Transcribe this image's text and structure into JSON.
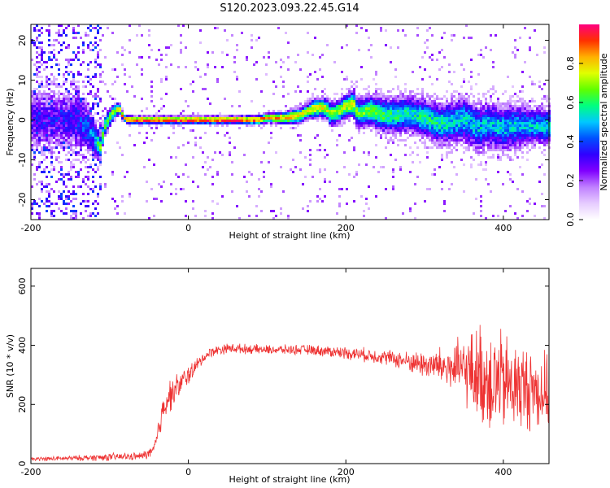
{
  "title": "S120.2023.093.22.45.G14",
  "chart_data": [
    {
      "type": "heatmap",
      "title": "S120.2023.093.22.45.G14",
      "xlabel": "Height of straight line (km)",
      "ylabel": "Frequency (Hz)",
      "xlim": [
        -200,
        458
      ],
      "ylim": [
        -25,
        24
      ],
      "xticks": [
        -200,
        0,
        200,
        400
      ],
      "yticks": [
        -20,
        -10,
        0,
        10,
        20
      ],
      "colorbar": {
        "label": "Normalized spectral amplitude",
        "range": [
          0.0,
          1.0
        ],
        "ticks": [
          "0.0",
          "0.2",
          "0.4",
          "0.6",
          "0.8"
        ],
        "colors": [
          "#ffffff",
          "#e6ccff",
          "#c080ff",
          "#8000ff",
          "#3000ff",
          "#0050ff",
          "#00c8ff",
          "#00ff80",
          "#60ff00",
          "#e0ff00",
          "#ffb000",
          "#ff3000",
          "#ff0080"
        ]
      },
      "ridge": {
        "x": [
          -200,
          -160,
          -140,
          -120,
          -112,
          -105,
          -95,
          -88,
          -82,
          -75,
          -60,
          0,
          60,
          90,
          100,
          120,
          140,
          150,
          160,
          175,
          180,
          190,
          200,
          210,
          215,
          230,
          250,
          280,
          300,
          320,
          350,
          370,
          380,
          400,
          420,
          440,
          458
        ],
        "y": [
          0,
          0,
          0,
          -4,
          -7,
          -1,
          2,
          3,
          0.5,
          0,
          0,
          0,
          0,
          0,
          0.5,
          0.5,
          1,
          2,
          3,
          3,
          1.5,
          2,
          3.5,
          4,
          1.5,
          2.5,
          1,
          1.5,
          0.5,
          -1,
          0,
          -2,
          -1,
          -2,
          -1.5,
          -1.5,
          -1.5
        ],
        "peak_amplitude": [
          0.3,
          0.3,
          0.35,
          0.45,
          0.7,
          0.65,
          0.7,
          0.75,
          0.9,
          0.92,
          0.95,
          0.95,
          0.95,
          0.9,
          0.85,
          0.85,
          0.8,
          0.75,
          0.78,
          0.75,
          0.72,
          0.7,
          0.75,
          0.72,
          0.65,
          0.65,
          0.6,
          0.55,
          0.55,
          0.55,
          0.5,
          0.5,
          0.5,
          0.5,
          0.5,
          0.5,
          0.5
        ],
        "spread_hz": [
          8,
          8,
          8,
          5,
          3,
          2.5,
          2,
          1.5,
          1,
          1,
          1,
          1,
          1,
          1.2,
          1.2,
          1.5,
          2,
          2,
          2.5,
          2.5,
          3,
          3,
          3,
          3.5,
          3.5,
          4,
          4.5,
          5,
          5,
          5.5,
          6,
          6,
          6,
          6,
          5.5,
          5,
          5
        ]
      }
    },
    {
      "type": "line",
      "xlabel": "Height of straight line (km)",
      "ylabel": "SNR (10 * v/v)",
      "xlim": [
        -200,
        458
      ],
      "ylim": [
        0,
        660
      ],
      "xticks": [
        -200,
        0,
        200,
        400
      ],
      "yticks": [
        0,
        200,
        400,
        600
      ],
      "color": "#ee3333",
      "series": [
        {
          "x": [
            -200,
            -150,
            -100,
            -60,
            -45,
            -40,
            -35,
            -30,
            -20,
            -10,
            0,
            10,
            20,
            30,
            50,
            100,
            150,
            200,
            250,
            280,
            300,
            320,
            340,
            360,
            370,
            380,
            390,
            400,
            420,
            440,
            458
          ],
          "mean": [
            15,
            18,
            22,
            25,
            40,
            80,
            150,
            210,
            240,
            270,
            300,
            330,
            360,
            380,
            390,
            385,
            385,
            375,
            360,
            345,
            335,
            330,
            320,
            310,
            300,
            290,
            280,
            270,
            260,
            250,
            240
          ],
          "noise_amplitude": [
            8,
            10,
            15,
            15,
            25,
            40,
            60,
            70,
            60,
            50,
            40,
            30,
            20,
            20,
            20,
            18,
            20,
            25,
            30,
            40,
            55,
            75,
            110,
            160,
            200,
            220,
            220,
            200,
            180,
            160,
            150
          ]
        }
      ]
    }
  ]
}
